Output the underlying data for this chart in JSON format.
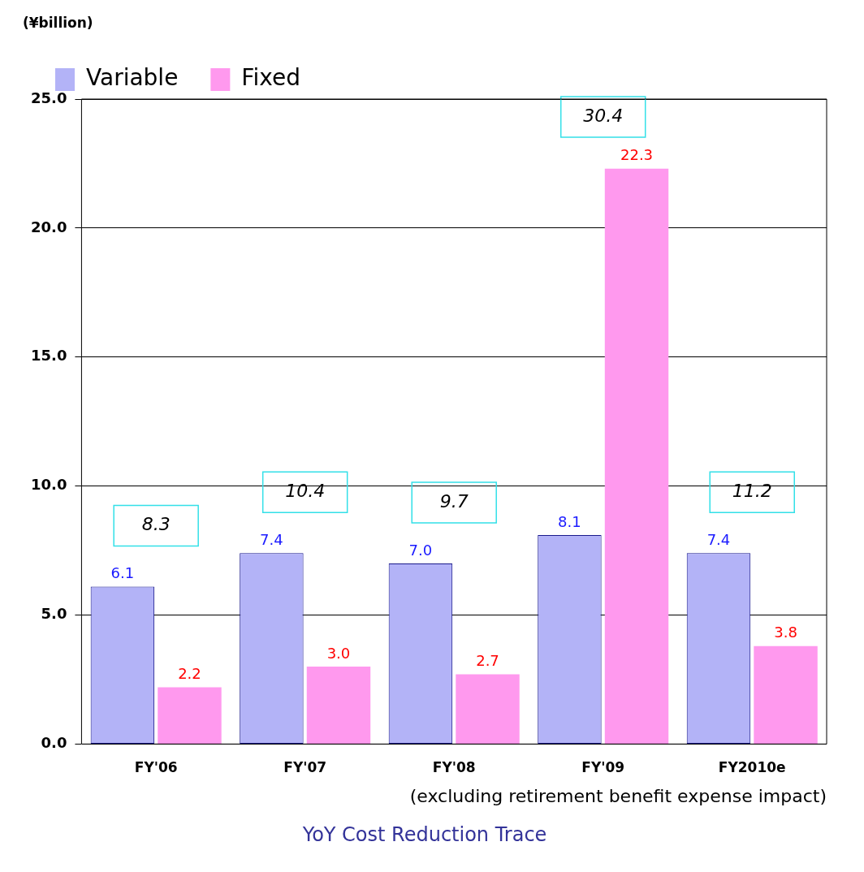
{
  "chart_data": {
    "type": "bar",
    "title": "YoY Cost Reduction Trace",
    "subtitle": "(excluding retirement benefit expense impact)",
    "ylabel": "(¥billion)",
    "categories": [
      "FY'06",
      "FY'07",
      "FY'08",
      "FY'09",
      "FY2010e"
    ],
    "series": [
      {
        "name": "Variable",
        "color": "#b3b3f7",
        "values": [
          6.1,
          7.4,
          7.0,
          8.1,
          7.4
        ],
        "value_labels": [
          "6.1",
          "7.4",
          "7.0",
          "8.1",
          "7.4"
        ]
      },
      {
        "name": "Fixed",
        "color": "#ff99ee",
        "values": [
          2.2,
          3.0,
          2.7,
          22.3,
          3.8
        ],
        "value_labels": [
          "2.2",
          "3.0",
          "2.7",
          "22.3",
          "3.8"
        ]
      }
    ],
    "ylim": [
      0,
      25
    ],
    "yticks": [
      {
        "value": 0,
        "label": "0.0"
      },
      {
        "value": 5,
        "label": "5.0"
      },
      {
        "value": 10,
        "label": "10.0"
      },
      {
        "value": 15,
        "label": "15.0"
      },
      {
        "value": 20,
        "label": "20.0"
      },
      {
        "value": 25,
        "label": "25.0"
      }
    ],
    "grid": "y",
    "legend": "top left",
    "totals": [
      "8.3",
      "10.4",
      "9.7",
      "30.4",
      "11.2"
    ]
  }
}
